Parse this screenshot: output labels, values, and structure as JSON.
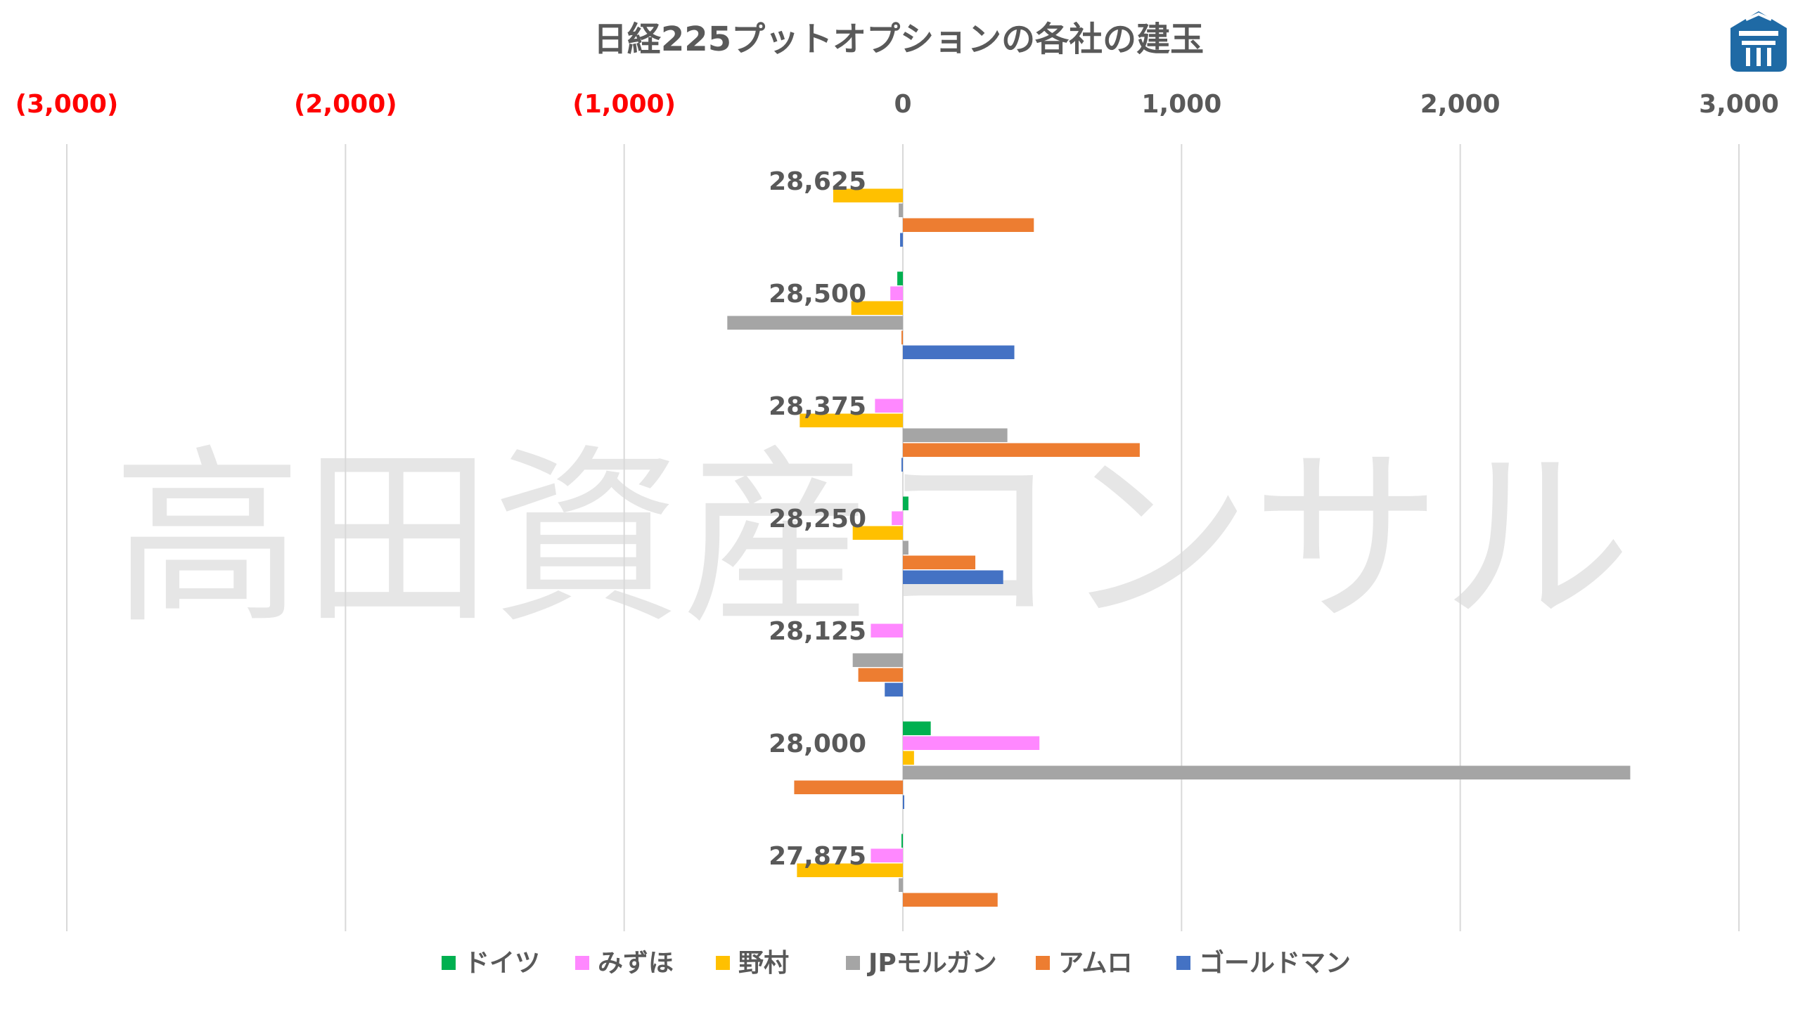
{
  "chart_data": {
    "type": "bar",
    "orientation": "horizontal",
    "title": "日経225プットオプションの各社の建玉",
    "watermark": "高田資産コンサル",
    "xlim": [
      -3000,
      3000
    ],
    "x_ticks": [
      {
        "value": -3000,
        "label": "(3,000)"
      },
      {
        "value": -2000,
        "label": "(2,000)"
      },
      {
        "value": -1000,
        "label": "(1,000)"
      },
      {
        "value": 0,
        "label": "0"
      },
      {
        "value": 1000,
        "label": "1,000"
      },
      {
        "value": 2000,
        "label": "2,000"
      },
      {
        "value": 3000,
        "label": "3,000"
      }
    ],
    "negative_tick_color": "#ff0000",
    "positive_tick_color": "#595959",
    "grid": true,
    "legend_position": "bottom",
    "categories": [
      "28,625",
      "28,500",
      "28,375",
      "28,250",
      "28,125",
      "28,000",
      "27,875"
    ],
    "series": [
      {
        "name": "ドイツ",
        "color": "#00b050",
        "values": [
          0,
          -20,
          0,
          20,
          0,
          100,
          -5
        ]
      },
      {
        "name": "みずほ",
        "color": "#ff88ff",
        "values": [
          0,
          -45,
          -100,
          -40,
          -115,
          490,
          -115
        ]
      },
      {
        "name": "野村",
        "color": "#ffc000",
        "values": [
          -250,
          -185,
          -370,
          -180,
          0,
          40,
          -380
        ]
      },
      {
        "name": "JPモルガン",
        "color": "#a5a5a5",
        "values": [
          -15,
          -630,
          375,
          20,
          -180,
          2610,
          -15
        ]
      },
      {
        "name": "アムロ",
        "color": "#ed7d31",
        "values": [
          470,
          -5,
          850,
          260,
          -160,
          -390,
          340
        ]
      },
      {
        "name": "ゴールドマン",
        "color": "#4472c4",
        "values": [
          -10,
          400,
          -5,
          360,
          -65,
          5,
          0
        ]
      }
    ]
  },
  "logo": {
    "name": "takada-logo",
    "color": "#1f6aa5"
  }
}
